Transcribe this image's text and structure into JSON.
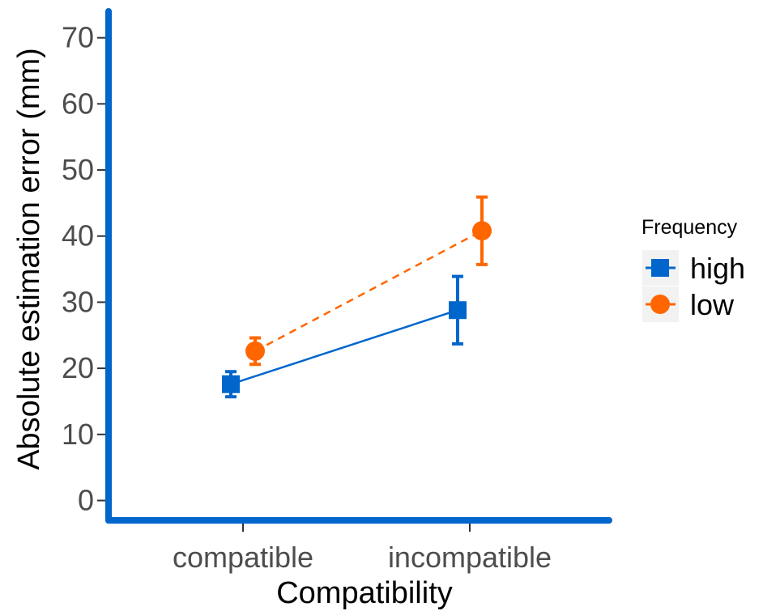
{
  "chart_data": {
    "type": "line",
    "title": "",
    "xlabel": "Compatibility",
    "ylabel": "Absolute estimation error (mm)",
    "categories": [
      "compatible",
      "incompatible"
    ],
    "ylim": [
      -3,
      74
    ],
    "yticks": [
      0,
      10,
      20,
      30,
      40,
      50,
      60,
      70
    ],
    "ytick_labels": [
      "0",
      "10",
      "20",
      "30",
      "40",
      "50",
      "60",
      "70"
    ],
    "grid": false,
    "legend": {
      "title": "Frequency",
      "placement": "right"
    },
    "series": [
      {
        "name": "high",
        "color": "#0066cc",
        "marker": "square",
        "linestyle": "solid",
        "values": [
          17.6,
          28.8
        ],
        "error_low": [
          15.7,
          23.7
        ],
        "error_high": [
          19.5,
          33.9
        ]
      },
      {
        "name": "low",
        "color": "#ff6600",
        "marker": "circle",
        "linestyle": "dashed",
        "values": [
          22.6,
          40.8
        ],
        "error_low": [
          20.6,
          35.7
        ],
        "error_high": [
          24.6,
          45.9
        ]
      }
    ],
    "axis_color": "#0066cc"
  }
}
